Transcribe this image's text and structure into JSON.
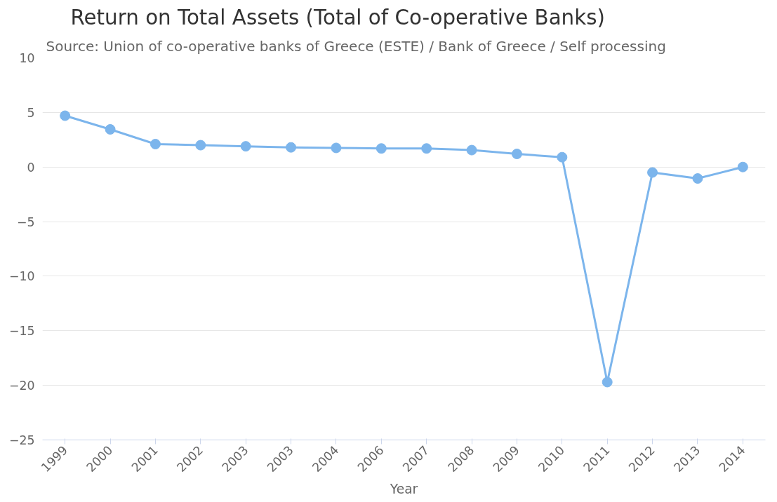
{
  "chart_data": {
    "type": "line",
    "title": "Return on Total Assets (Total of Co-operative Banks)",
    "annotations": [
      "Source: Union of co-operative banks of Greece (ESTE) / Bank of Greece / Self processing"
    ],
    "xlabel": "Year",
    "categories": [
      "1999",
      "2000",
      "2001",
      "2002",
      "2003",
      "2003",
      "2004",
      "2006",
      "2007",
      "2008",
      "2009",
      "2010",
      "2011",
      "2012",
      "2013",
      "2014"
    ],
    "series": [
      {
        "color": "#7cb5ec",
        "values": [
          4.7,
          3.45,
          2.1,
          2.0,
          1.9,
          1.8,
          1.75,
          1.7,
          1.7,
          1.55,
          1.2,
          0.9,
          -19.7,
          -0.5,
          -1.05,
          0
        ]
      }
    ],
    "ylim": [
      -25,
      10
    ],
    "yticks": [
      -25,
      -20,
      -15,
      -10,
      -5,
      0,
      5,
      10
    ],
    "grid": "y",
    "marker": "circle"
  }
}
